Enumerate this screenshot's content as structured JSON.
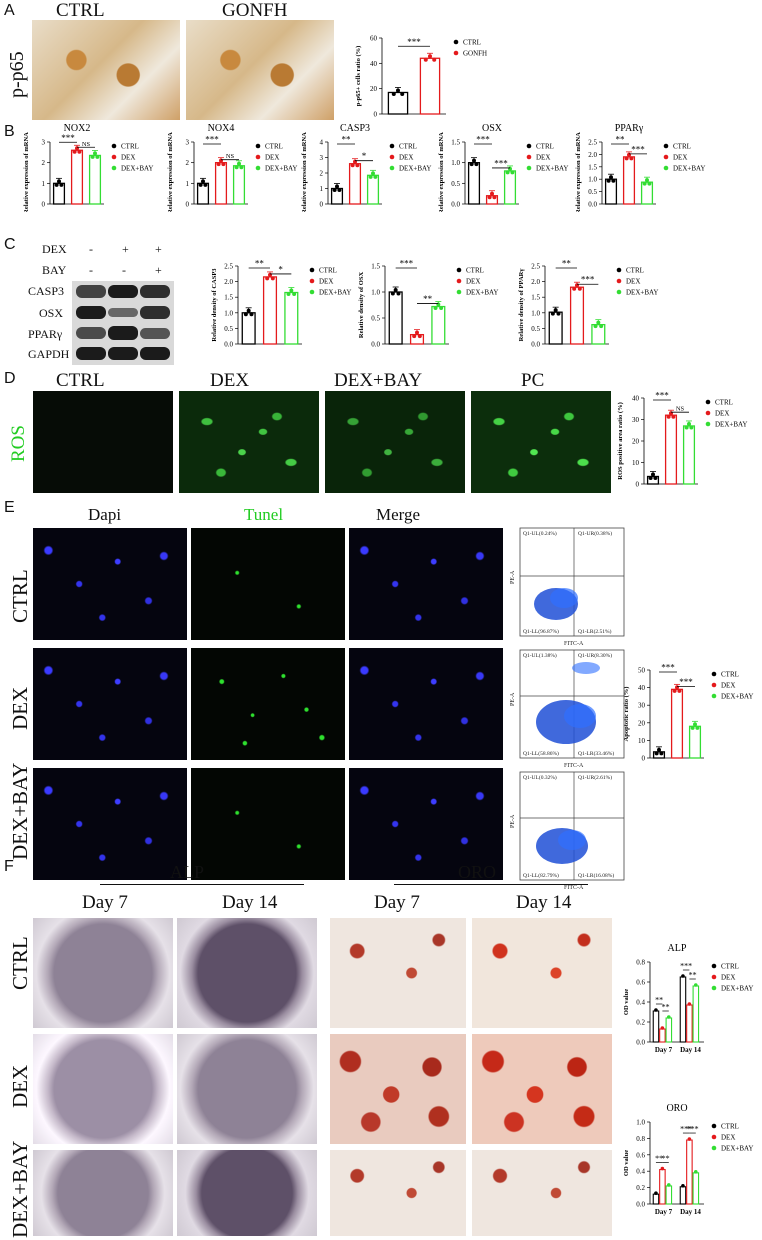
{
  "panels": {
    "A": "A",
    "B": "B",
    "C": "C",
    "D": "D",
    "E": "E",
    "F": "F"
  },
  "panelA": {
    "row_label": "p-p65",
    "col_labels": [
      "CTRL",
      "GONFH"
    ]
  },
  "panelC": {
    "treatment_rows": [
      {
        "name": "DEX",
        "signs": [
          "-",
          "+",
          "+"
        ]
      },
      {
        "name": "BAY",
        "signs": [
          "-",
          "-",
          "+"
        ]
      }
    ],
    "blot_labels": [
      "CASP3",
      "OSX",
      "PPARγ",
      "GAPDH"
    ]
  },
  "panelD": {
    "col_labels": [
      "CTRL",
      "DEX",
      "DEX+BAY",
      "PC"
    ],
    "row_label": "ROS"
  },
  "panelE": {
    "col_labels": [
      "Dapi",
      "Tunel",
      "Merge"
    ],
    "row_labels": [
      "CTRL",
      "DEX",
      "DEX+BAY"
    ],
    "flow": [
      {
        "ul": "Q1-UL(0.24%)",
        "ur": "Q1-UR(0.38%)",
        "ll": "Q1-LL(96.87%)",
        "lr": "Q1-LR(2.51%)",
        "xaxis": "FITC-A",
        "yaxis": "PE-A"
      },
      {
        "ul": "Q1-UL(1.38%)",
        "ur": "Q1-UR(8.30%)",
        "ll": "Q1-LL(58.86%)",
        "lr": "Q1-LR(33.46%)",
        "xaxis": "FITC-A",
        "yaxis": "PE-A"
      },
      {
        "ul": "Q1-UL(0.32%)",
        "ur": "Q1-UR(2.61%)",
        "ll": "Q1-LL(82.79%)",
        "lr": "Q1-LR(16.08%)",
        "xaxis": "FITC-A",
        "yaxis": "PE-A"
      }
    ]
  },
  "panelF": {
    "group_labels": [
      "ALP",
      "ORO"
    ],
    "day_labels": [
      "Day 7",
      "Day 14",
      "Day 7",
      "Day 14"
    ],
    "row_labels": [
      "CTRL",
      "DEX",
      "DEX+BAY"
    ]
  },
  "colors": {
    "CTRL": "#000000",
    "DEX": "#e41a1c",
    "DEX+BAY": "#33dd33",
    "GONFH": "#e41a1c"
  },
  "chart_data": [
    {
      "id": "A",
      "type": "bar",
      "categories": [
        "CTRL",
        "GONFH"
      ],
      "ylabel": "p-p65+ cells ratio (%)",
      "ylim": [
        0,
        60
      ],
      "yticks": [
        0,
        20,
        40,
        60
      ],
      "series": [
        {
          "values": [
            17,
            44
          ]
        }
      ],
      "legend": [
        "CTRL",
        "GONFH"
      ],
      "sig": [
        {
          "text": "***"
        }
      ]
    },
    {
      "id": "B-NOX2",
      "type": "bar",
      "title": "NOX2",
      "categories": [
        "CTRL",
        "DEX",
        "DEX+BAY"
      ],
      "ylabel": "Relative expression of mRNA",
      "ylim": [
        0,
        3
      ],
      "yticks": [
        0,
        1,
        2,
        3
      ],
      "series": [
        {
          "values": [
            1.0,
            2.6,
            2.35
          ]
        }
      ],
      "legend": [
        "CTRL",
        "DEX",
        "DEX+BAY"
      ],
      "sig": [
        {
          "text": "***"
        },
        {
          "text": "NS"
        }
      ]
    },
    {
      "id": "B-NOX4",
      "type": "bar",
      "title": "NOX4",
      "categories": [
        "CTRL",
        "DEX",
        "DEX+BAY"
      ],
      "ylabel": "Relative expression of mRNA",
      "ylim": [
        0,
        3
      ],
      "yticks": [
        0,
        1,
        2,
        3
      ],
      "series": [
        {
          "values": [
            1.0,
            2.0,
            1.85
          ]
        }
      ],
      "legend": [
        "CTRL",
        "DEX",
        "DEX+BAY"
      ],
      "sig": [
        {
          "text": "***"
        },
        {
          "text": "NS"
        }
      ]
    },
    {
      "id": "B-CASP3",
      "type": "bar",
      "title": "CASP3",
      "categories": [
        "CTRL",
        "DEX",
        "DEX+BAY"
      ],
      "ylabel": "Relative expression of mRNA",
      "ylim": [
        0,
        4
      ],
      "yticks": [
        0,
        1,
        2,
        3,
        4
      ],
      "series": [
        {
          "values": [
            1.0,
            2.6,
            1.85
          ]
        }
      ],
      "legend": [
        "CTRL",
        "DEX",
        "DEX+BAY"
      ],
      "sig": [
        {
          "text": "**"
        },
        {
          "text": "*"
        }
      ]
    },
    {
      "id": "B-OSX",
      "type": "bar",
      "title": "OSX",
      "categories": [
        "CTRL",
        "DEX",
        "DEX+BAY"
      ],
      "ylabel": "Relative expression of mRNA",
      "ylim": [
        0,
        1.5
      ],
      "yticks": [
        0.0,
        0.5,
        1.0,
        1.5
      ],
      "series": [
        {
          "values": [
            1.0,
            0.2,
            0.8
          ]
        }
      ],
      "legend": [
        "CTRL",
        "DEX",
        "DEX+BAY"
      ],
      "sig": [
        {
          "text": "***"
        },
        {
          "text": "***"
        }
      ]
    },
    {
      "id": "B-PPARg",
      "type": "bar",
      "title": "PPARγ",
      "categories": [
        "CTRL",
        "DEX",
        "DEX+BAY"
      ],
      "ylabel": "Relative expression of mRNA",
      "ylim": [
        0,
        2.5
      ],
      "yticks": [
        0.0,
        0.5,
        1.0,
        1.5,
        2.0,
        2.5
      ],
      "series": [
        {
          "values": [
            1.0,
            1.9,
            0.88
          ]
        }
      ],
      "legend": [
        "CTRL",
        "DEX",
        "DEX+BAY"
      ],
      "sig": [
        {
          "text": "**"
        },
        {
          "text": "***"
        }
      ]
    },
    {
      "id": "C-CASP3",
      "type": "bar",
      "categories": [
        "CTRL",
        "DEX",
        "DEX+BAY"
      ],
      "ylabel": "Relative density of CASP3",
      "ylim": [
        0,
        2.5
      ],
      "yticks": [
        0.0,
        0.5,
        1.0,
        1.5,
        2.0,
        2.5
      ],
      "series": [
        {
          "values": [
            1.0,
            2.15,
            1.65
          ]
        }
      ],
      "legend": [
        "CTRL",
        "DEX",
        "DEX+BAY"
      ],
      "sig": [
        {
          "text": "**"
        },
        {
          "text": "*"
        }
      ]
    },
    {
      "id": "C-OSX",
      "type": "bar",
      "categories": [
        "CTRL",
        "DEX",
        "DEX+BAY"
      ],
      "ylabel": "Relative density of OSX",
      "ylim": [
        0,
        1.5
      ],
      "yticks": [
        0.0,
        0.5,
        1.0,
        1.5
      ],
      "series": [
        {
          "values": [
            1.0,
            0.18,
            0.72
          ]
        }
      ],
      "legend": [
        "CTRL",
        "DEX",
        "DEX+BAY"
      ],
      "sig": [
        {
          "text": "***"
        },
        {
          "text": "**"
        }
      ]
    },
    {
      "id": "C-PPARg",
      "type": "bar",
      "categories": [
        "CTRL",
        "DEX",
        "DEX+BAY"
      ],
      "ylabel": "Relative density of PPARγ",
      "ylim": [
        0,
        2.5
      ],
      "yticks": [
        0.0,
        0.5,
        1.0,
        1.5,
        2.0,
        2.5
      ],
      "series": [
        {
          "values": [
            1.02,
            1.82,
            0.62
          ]
        }
      ],
      "legend": [
        "CTRL",
        "DEX",
        "DEX+BAY"
      ],
      "sig": [
        {
          "text": "**"
        },
        {
          "text": "***"
        }
      ]
    },
    {
      "id": "D-ROS",
      "type": "bar",
      "categories": [
        "CTRL",
        "DEX",
        "DEX+BAY"
      ],
      "ylabel": "ROS positive area ratio (%)",
      "ylim": [
        0,
        40
      ],
      "yticks": [
        0,
        10,
        20,
        30,
        40
      ],
      "series": [
        {
          "values": [
            3.5,
            32,
            27
          ]
        }
      ],
      "legend": [
        "CTRL",
        "DEX",
        "DEX+BAY"
      ],
      "sig": [
        {
          "text": "***"
        },
        {
          "text": "NS"
        }
      ]
    },
    {
      "id": "E-Apoptosis",
      "type": "bar",
      "categories": [
        "CTRL",
        "DEX",
        "DEX+BAY"
      ],
      "ylabel": "Apoptotic ratio (%)",
      "ylim": [
        0,
        50
      ],
      "yticks": [
        0,
        10,
        20,
        30,
        40,
        50
      ],
      "series": [
        {
          "values": [
            3.5,
            39,
            18
          ]
        }
      ],
      "legend": [
        "CTRL",
        "DEX",
        "DEX+BAY"
      ],
      "sig": [
        {
          "text": "***"
        },
        {
          "text": "***"
        }
      ]
    },
    {
      "id": "F-ALP",
      "type": "bar",
      "title": "ALP",
      "categories": [
        "Day 7",
        "Day 14"
      ],
      "ylabel": "OD value",
      "ylim": [
        0,
        0.8
      ],
      "yticks": [
        0.0,
        0.2,
        0.4,
        0.6,
        0.8
      ],
      "series": [
        {
          "name": "CTRL",
          "values": [
            0.31,
            0.65
          ]
        },
        {
          "name": "DEX",
          "values": [
            0.13,
            0.37
          ]
        },
        {
          "name": "DEX+BAY",
          "values": [
            0.24,
            0.56
          ]
        }
      ],
      "legend": [
        "CTRL",
        "DEX",
        "DEX+BAY"
      ],
      "sig": [
        {
          "text": "**"
        },
        {
          "text": "**"
        },
        {
          "text": "***"
        },
        {
          "text": "**"
        }
      ]
    },
    {
      "id": "F-ORO",
      "type": "bar",
      "title": "ORO",
      "categories": [
        "Day 7",
        "Day 14"
      ],
      "ylabel": "OD value",
      "ylim": [
        0,
        1.0
      ],
      "yticks": [
        0.0,
        0.2,
        0.4,
        0.6,
        0.8,
        1.0
      ],
      "series": [
        {
          "name": "CTRL",
          "values": [
            0.12,
            0.21
          ]
        },
        {
          "name": "DEX",
          "values": [
            0.42,
            0.78
          ]
        },
        {
          "name": "DEX+BAY",
          "values": [
            0.22,
            0.38
          ]
        }
      ],
      "legend": [
        "CTRL",
        "DEX",
        "DEX+BAY"
      ],
      "sig": [
        {
          "text": "**"
        },
        {
          "text": "**"
        },
        {
          "text": "***"
        },
        {
          "text": "***"
        }
      ]
    }
  ]
}
